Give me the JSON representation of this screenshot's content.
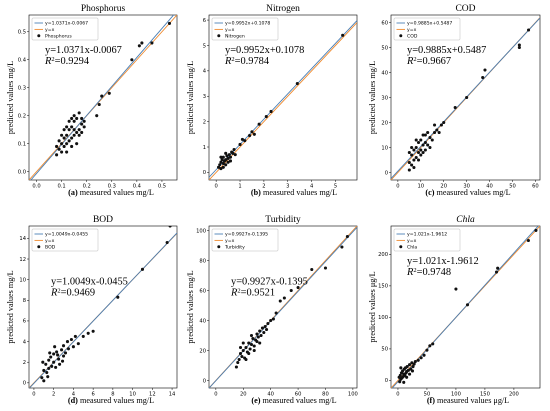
{
  "series_colors": {
    "regression": "#4a7fb5",
    "identity": "#ef8a2e",
    "points": "#111111"
  },
  "chart_data": [
    {
      "type": "scatter",
      "title": "Phosphorus",
      "title_italic": false,
      "caption_letter": "(a)",
      "xlabel": "measured values mg/L",
      "ylabel": "predicted values mg/L",
      "xlim": [
        -0.03,
        0.56
      ],
      "ylim": [
        -0.03,
        0.56
      ],
      "xticks": [
        0.0,
        0.1,
        0.2,
        0.3,
        0.4,
        0.5
      ],
      "yticks": [
        0.0,
        0.1,
        0.2,
        0.3,
        0.4,
        0.5
      ],
      "tick_decimals": 1,
      "fit": {
        "slope": 1.0371,
        "intercept": -0.0067
      },
      "legend": [
        "y=1.0371x-0.0067",
        "y=x",
        "Phosphorus"
      ],
      "equation": "y=1.0371x-0.0067",
      "r2": "=0.9294",
      "eq_pos": "upper-left",
      "points": [
        [
          0.08,
          0.06
        ],
        [
          0.09,
          0.08
        ],
        [
          0.1,
          0.07
        ],
        [
          0.1,
          0.1
        ],
        [
          0.11,
          0.09
        ],
        [
          0.11,
          0.12
        ],
        [
          0.12,
          0.1
        ],
        [
          0.12,
          0.13
        ],
        [
          0.13,
          0.11
        ],
        [
          0.13,
          0.15
        ],
        [
          0.14,
          0.12
        ],
        [
          0.14,
          0.16
        ],
        [
          0.15,
          0.13
        ],
        [
          0.15,
          0.18
        ],
        [
          0.15,
          0.2
        ],
        [
          0.16,
          0.14
        ],
        [
          0.16,
          0.19
        ],
        [
          0.17,
          0.15
        ],
        [
          0.17,
          0.21
        ],
        [
          0.18,
          0.17
        ],
        [
          0.18,
          0.19
        ],
        [
          0.19,
          0.18
        ],
        [
          0.1,
          0.13
        ],
        [
          0.12,
          0.16
        ],
        [
          0.14,
          0.09
        ],
        [
          0.09,
          0.11
        ],
        [
          0.11,
          0.15
        ],
        [
          0.13,
          0.18
        ],
        [
          0.16,
          0.1
        ],
        [
          0.08,
          0.09
        ],
        [
          0.12,
          0.07
        ],
        [
          0.15,
          0.15
        ],
        [
          0.17,
          0.13
        ],
        [
          0.19,
          0.16
        ],
        [
          0.24,
          0.2
        ],
        [
          0.25,
          0.24
        ],
        [
          0.26,
          0.27
        ],
        [
          0.29,
          0.28
        ],
        [
          0.38,
          0.4
        ],
        [
          0.41,
          0.45
        ],
        [
          0.42,
          0.46
        ],
        [
          0.46,
          0.46
        ],
        [
          0.53,
          0.53
        ],
        [
          0.14,
          0.19
        ],
        [
          0.18,
          0.14
        ]
      ]
    },
    {
      "type": "scatter",
      "title": "Nitrogen",
      "title_italic": false,
      "caption_letter": "(b)",
      "xlabel": "measured values mg/L",
      "ylabel": "predicted values mg/L",
      "xlim": [
        -0.3,
        5.9
      ],
      "ylim": [
        -0.3,
        6.2
      ],
      "xticks": [
        0,
        1,
        2,
        3,
        4,
        5
      ],
      "yticks": [
        0,
        1,
        2,
        3,
        4,
        5,
        6
      ],
      "tick_decimals": 0,
      "fit": {
        "slope": 0.9952,
        "intercept": 0.1078
      },
      "legend": [
        "y=0.9952x+0.1078",
        "y=x",
        "Nitrogen"
      ],
      "equation": "y=0.9952x+0.1078",
      "r2": "=0.9784",
      "eq_pos": "upper-left",
      "points": [
        [
          0.1,
          0.2
        ],
        [
          0.15,
          0.3
        ],
        [
          0.2,
          0.4
        ],
        [
          0.2,
          0.15
        ],
        [
          0.25,
          0.5
        ],
        [
          0.3,
          0.35
        ],
        [
          0.3,
          0.6
        ],
        [
          0.35,
          0.45
        ],
        [
          0.4,
          0.5
        ],
        [
          0.4,
          0.3
        ],
        [
          0.45,
          0.65
        ],
        [
          0.5,
          0.55
        ],
        [
          0.5,
          0.4
        ],
        [
          0.55,
          0.7
        ],
        [
          0.6,
          0.6
        ],
        [
          0.65,
          0.8
        ],
        [
          0.7,
          0.75
        ],
        [
          0.75,
          0.9
        ],
        [
          0.8,
          0.7
        ],
        [
          0.2,
          0.6
        ],
        [
          0.3,
          0.2
        ],
        [
          0.4,
          0.75
        ],
        [
          0.6,
          0.45
        ],
        [
          1.0,
          1.1
        ],
        [
          1.1,
          1.3
        ],
        [
          1.2,
          1.25
        ],
        [
          1.4,
          1.45
        ],
        [
          1.5,
          1.6
        ],
        [
          1.6,
          1.5
        ],
        [
          1.8,
          1.9
        ],
        [
          2.1,
          2.2
        ],
        [
          2.3,
          2.4
        ],
        [
          3.4,
          3.5
        ],
        [
          5.3,
          5.4
        ]
      ]
    },
    {
      "type": "scatter",
      "title": "COD",
      "title_italic": false,
      "caption_letter": "(c)",
      "xlabel": "measured values mg/L",
      "ylabel": "predicted values mg/L",
      "xlim": [
        -3,
        62
      ],
      "ylim": [
        -3,
        63
      ],
      "xticks": [
        0,
        10,
        20,
        30,
        40,
        50,
        60
      ],
      "yticks": [
        0,
        10,
        20,
        30,
        40,
        50,
        60
      ],
      "tick_decimals": 0,
      "fit": {
        "slope": 0.9885,
        "intercept": 0.5487
      },
      "legend": [
        "y=0.9885x+0.5487",
        "y=x",
        "COD"
      ],
      "equation": "y=0.9885x+0.5487",
      "r2": "=0.9667",
      "eq_pos": "upper-left",
      "points": [
        [
          5,
          1
        ],
        [
          5,
          4
        ],
        [
          6,
          3
        ],
        [
          6,
          7
        ],
        [
          7,
          5
        ],
        [
          7,
          9
        ],
        [
          8,
          6
        ],
        [
          8,
          10
        ],
        [
          9,
          8
        ],
        [
          9,
          12
        ],
        [
          10,
          9
        ],
        [
          10,
          13
        ],
        [
          11,
          11
        ],
        [
          11,
          8
        ],
        [
          12,
          12
        ],
        [
          12,
          15
        ],
        [
          13,
          11
        ],
        [
          14,
          14
        ],
        [
          15,
          13
        ],
        [
          16,
          16
        ],
        [
          17,
          17
        ],
        [
          18,
          16
        ],
        [
          19,
          19
        ],
        [
          20,
          20
        ],
        [
          6,
          10
        ],
        [
          7,
          2
        ],
        [
          8,
          13
        ],
        [
          9,
          5
        ],
        [
          10,
          7
        ],
        [
          13,
          16
        ],
        [
          14,
          10
        ],
        [
          16,
          19
        ],
        [
          5,
          8
        ],
        [
          25,
          26
        ],
        [
          30,
          30
        ],
        [
          37,
          38
        ],
        [
          38,
          41
        ],
        [
          53,
          50
        ],
        [
          53,
          51
        ],
        [
          57,
          57
        ],
        [
          11,
          15
        ],
        [
          12,
          9
        ]
      ]
    },
    {
      "type": "scatter",
      "title": "BOD",
      "title_italic": false,
      "caption_letter": "(d)",
      "xlabel": "measured values mg/L",
      "ylabel": "predicted values mg/L",
      "xlim": [
        -0.5,
        14.5
      ],
      "ylim": [
        -0.5,
        15.2
      ],
      "xticks": [
        0,
        2,
        4,
        6,
        8,
        10,
        12,
        14
      ],
      "yticks": [
        0,
        2,
        4,
        6,
        8,
        10,
        12,
        14
      ],
      "tick_decimals": 0,
      "fit": {
        "slope": 1.0049,
        "intercept": -0.0455
      },
      "legend": [
        "y=1.0049x-0.0455",
        "y=x",
        "BOD"
      ],
      "equation": "y=1.0049x-0.0455",
      "r2": "=0.9469",
      "eq_pos": "middle-left",
      "points": [
        [
          0.8,
          0.5
        ],
        [
          1.0,
          1.2
        ],
        [
          1.0,
          0.2
        ],
        [
          1.2,
          1.8
        ],
        [
          1.3,
          1.0
        ],
        [
          1.5,
          2.2
        ],
        [
          1.5,
          1.4
        ],
        [
          1.7,
          2.5
        ],
        [
          1.8,
          1.6
        ],
        [
          2.0,
          2.8
        ],
        [
          2.0,
          2.0
        ],
        [
          2.2,
          1.5
        ],
        [
          2.3,
          3.0
        ],
        [
          2.5,
          2.3
        ],
        [
          2.6,
          1.8
        ],
        [
          2.8,
          3.2
        ],
        [
          3.0,
          2.6
        ],
        [
          3.0,
          3.6
        ],
        [
          3.2,
          2.9
        ],
        [
          3.5,
          3.3
        ],
        [
          3.8,
          4.2
        ],
        [
          4.0,
          3.5
        ],
        [
          4.2,
          4.5
        ],
        [
          4.5,
          3.8
        ],
        [
          5.0,
          4.5
        ],
        [
          5.5,
          4.8
        ],
        [
          6.0,
          5.0
        ],
        [
          0.9,
          2.0
        ],
        [
          1.4,
          0.6
        ],
        [
          2.4,
          2.7
        ],
        [
          2.1,
          3.5
        ],
        [
          3.4,
          4.0
        ],
        [
          8.5,
          8.3
        ],
        [
          11.0,
          11.0
        ],
        [
          13.5,
          13.6
        ],
        [
          13.8,
          15.2
        ],
        [
          1.6,
          2.9
        ],
        [
          2.9,
          2.1
        ]
      ]
    },
    {
      "type": "scatter",
      "title": "Turbidity",
      "title_italic": false,
      "caption_letter": "(e)",
      "xlabel": "measured values mg/L",
      "ylabel": "predicted values mg/L",
      "xlim": [
        -5,
        103
      ],
      "ylim": [
        -5,
        103
      ],
      "xticks": [
        0,
        20,
        40,
        60,
        80,
        100
      ],
      "yticks": [
        0,
        20,
        40,
        60,
        80,
        100
      ],
      "tick_decimals": 0,
      "fit": {
        "slope": 0.9927,
        "intercept": -0.1395
      },
      "legend": [
        "y=0.9927x-0.1395",
        "y=x",
        "Turbidity"
      ],
      "equation": "y=0.9927x-0.1395",
      "r2": "=0.9521",
      "eq_pos": "middle-left",
      "points": [
        [
          15,
          9
        ],
        [
          16,
          12
        ],
        [
          17,
          14
        ],
        [
          18,
          18
        ],
        [
          19,
          16
        ],
        [
          20,
          20
        ],
        [
          21,
          15
        ],
        [
          22,
          22
        ],
        [
          23,
          19
        ],
        [
          24,
          25
        ],
        [
          25,
          21
        ],
        [
          26,
          24
        ],
        [
          27,
          28
        ],
        [
          28,
          23
        ],
        [
          29,
          27
        ],
        [
          30,
          26
        ],
        [
          30,
          31
        ],
        [
          31,
          29
        ],
        [
          32,
          33
        ],
        [
          33,
          30
        ],
        [
          34,
          35
        ],
        [
          35,
          32
        ],
        [
          36,
          36
        ],
        [
          37,
          34
        ],
        [
          38,
          38
        ],
        [
          40,
          40
        ],
        [
          42,
          41
        ],
        [
          20,
          25
        ],
        [
          22,
          14
        ],
        [
          24,
          18
        ],
        [
          26,
          30
        ],
        [
          28,
          20
        ],
        [
          32,
          25
        ],
        [
          18,
          22
        ],
        [
          44,
          45
        ],
        [
          47,
          53
        ],
        [
          50,
          55
        ],
        [
          55,
          60
        ],
        [
          60,
          62
        ],
        [
          70,
          74
        ],
        [
          80,
          75
        ],
        [
          92,
          89
        ],
        [
          96,
          96
        ]
      ]
    },
    {
      "type": "scatter",
      "title": "Chla",
      "title_italic": true,
      "caption_letter": "(f)",
      "xlabel": "measured values μg/L",
      "ylabel": "predicted values μg/L",
      "xlim": [
        -12,
        245
      ],
      "ylim": [
        -12,
        245
      ],
      "xticks": [
        0,
        50,
        100,
        150,
        200
      ],
      "yticks": [
        0,
        50,
        100,
        150,
        200,
        250
      ],
      "tick_decimals": 0,
      "fit": {
        "slope": 1.021,
        "intercept": -1.9612
      },
      "legend": [
        "y=1.021x-1.9612",
        "y=x",
        "Chla"
      ],
      "equation": "y=1.021x-1.9612",
      "r2": "=0.9748",
      "eq_pos": "upper-left",
      "points": [
        [
          2,
          5
        ],
        [
          3,
          -2
        ],
        [
          4,
          8
        ],
        [
          5,
          2
        ],
        [
          6,
          12
        ],
        [
          7,
          4
        ],
        [
          8,
          15
        ],
        [
          9,
          6
        ],
        [
          10,
          10
        ],
        [
          11,
          18
        ],
        [
          12,
          8
        ],
        [
          13,
          20
        ],
        [
          14,
          12
        ],
        [
          15,
          14
        ],
        [
          16,
          22
        ],
        [
          18,
          16
        ],
        [
          20,
          25
        ],
        [
          22,
          18
        ],
        [
          24,
          28
        ],
        [
          26,
          22
        ],
        [
          28,
          26
        ],
        [
          30,
          30
        ],
        [
          5,
          20
        ],
        [
          10,
          -3
        ],
        [
          15,
          5
        ],
        [
          20,
          10
        ],
        [
          25,
          15
        ],
        [
          35,
          32
        ],
        [
          40,
          36
        ],
        [
          45,
          40
        ],
        [
          50,
          48
        ],
        [
          55,
          55
        ],
        [
          60,
          58
        ],
        [
          100,
          145
        ],
        [
          120,
          120
        ],
        [
          170,
          172
        ],
        [
          172,
          178
        ],
        [
          225,
          222
        ],
        [
          238,
          238
        ]
      ]
    }
  ]
}
